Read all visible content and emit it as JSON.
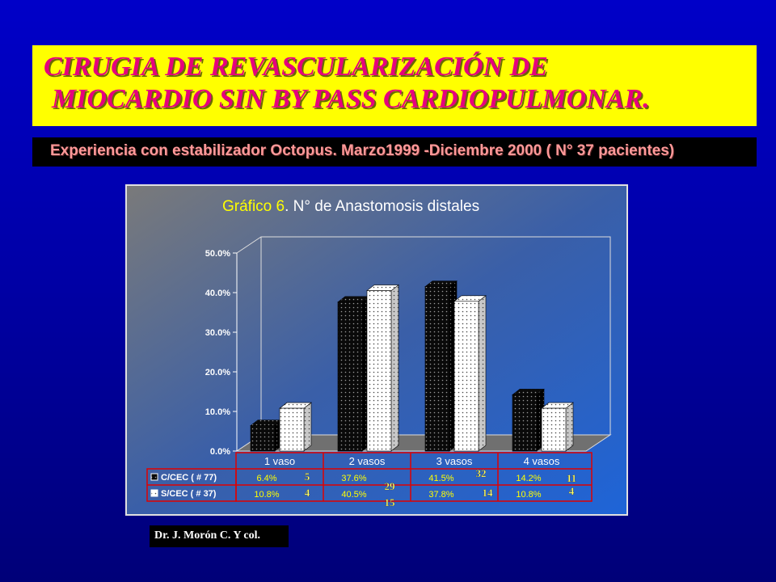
{
  "slide": {
    "title_line1": "CIRUGIA DE REVASCULARIZACIÓN DE",
    "title_line2": "MIOCARDIO  SIN BY PASS CARDIOPULMONAR.",
    "subtitle": "Experiencia con estabilizador Octopus. Marzo1999 -Diciembre 2000 ( N° 37 pacientes)",
    "credit": "Dr. J. Morón C. Y col.",
    "colors": {
      "title_bg": "#ffff00",
      "title_text": "#e6007e",
      "subtitle_text": "#ff9999",
      "table_border": "#e00000",
      "chart_title": "#ffff00"
    }
  },
  "chart_data": {
    "type": "bar",
    "title": "Gráfico 6. N° de Anastomosis distales",
    "title_prefix": "Gráfico 6",
    "title_suffix": ". N° de Anastomosis distales",
    "categories": [
      "1 vaso",
      "2 vasos",
      "3 vasos",
      "4 vasos"
    ],
    "ylim": [
      0,
      50
    ],
    "y_ticks": [
      "0.0%",
      "10.0%",
      "20.0%",
      "30.0%",
      "40.0%",
      "50.0%"
    ],
    "y_tick_values": [
      0,
      10,
      20,
      30,
      40,
      50
    ],
    "series": [
      {
        "name": "C/CEC ( # 77)",
        "values": [
          6.4,
          37.6,
          41.5,
          14.2
        ],
        "labels": [
          "6.4%",
          "37.6%",
          "41.5%",
          "14.2%"
        ],
        "counts": [
          "5",
          "29",
          "32",
          "11"
        ],
        "fill": "black-dotted"
      },
      {
        "name": "S/CEC ( # 37)",
        "values": [
          10.8,
          40.5,
          37.8,
          10.8
        ],
        "labels": [
          "10.8%",
          "40.5%",
          "37.8%",
          "10.8%"
        ],
        "counts": [
          "4",
          "15",
          "14",
          "4"
        ],
        "fill": "white-dotted"
      }
    ],
    "grid": false,
    "style": "3d",
    "legend": "data-table"
  }
}
